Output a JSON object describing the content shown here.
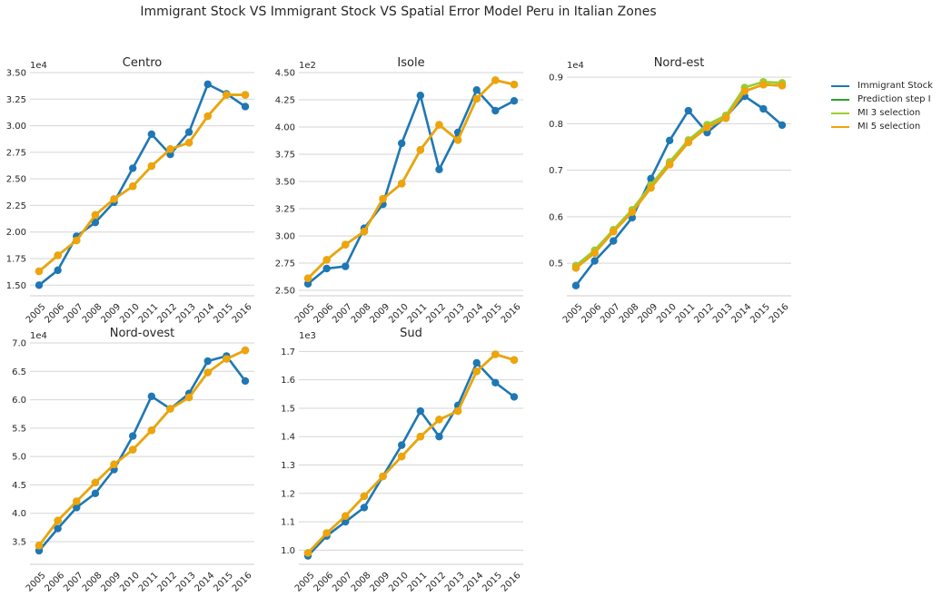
{
  "title": "Immigrant Stock VS Immigrant Stock VS Spatial Error Model Peru in Italian Zones",
  "series_names": [
    "Immigrant Stock",
    "Prediction step I",
    "MI 3 selection",
    "MI 5 selection"
  ],
  "colors": {
    "Immigrant Stock": "#1f77b4",
    "Prediction step I": "#2ca02c",
    "MI 3 selection": "#9acd32",
    "MI 5 selection": "#f0a30a",
    "grid": "#d5d5d5",
    "text": "#262626"
  },
  "chart_data": [
    {
      "type": "line",
      "title": "Centro",
      "multiplier": "1e4",
      "x": [
        "2005",
        "2006",
        "2007",
        "2008",
        "2009",
        "2010",
        "2011",
        "2012",
        "2013",
        "2014",
        "2015",
        "2016"
      ],
      "ylim": [
        1.4,
        3.5
      ],
      "yticks": [
        "1.50",
        "1.75",
        "2.00",
        "2.25",
        "2.50",
        "2.75",
        "3.00",
        "3.25",
        "3.50"
      ],
      "series": [
        {
          "name": "Immigrant Stock",
          "values": [
            1.5,
            1.64,
            1.96,
            2.09,
            2.28,
            2.6,
            2.92,
            2.73,
            2.94,
            3.39,
            3.3,
            3.18
          ]
        },
        {
          "name": "Prediction step I",
          "values": [
            1.63,
            1.78,
            1.92,
            2.16,
            2.31,
            2.43,
            2.62,
            2.78,
            2.84,
            3.09,
            3.29,
            3.29
          ]
        },
        {
          "name": "MI 3 selection",
          "values": [
            1.63,
            1.78,
            1.92,
            2.16,
            2.31,
            2.43,
            2.62,
            2.78,
            2.84,
            3.09,
            3.29,
            3.29
          ]
        },
        {
          "name": "MI 5 selection",
          "values": [
            1.63,
            1.78,
            1.92,
            2.16,
            2.31,
            2.43,
            2.62,
            2.78,
            2.84,
            3.09,
            3.29,
            3.29
          ]
        }
      ]
    },
    {
      "type": "line",
      "title": "Isole",
      "multiplier": "1e2",
      "x": [
        "2005",
        "2006",
        "2007",
        "2008",
        "2009",
        "2010",
        "2011",
        "2012",
        "2013",
        "2014",
        "2015",
        "2016"
      ],
      "ylim": [
        2.45,
        4.5
      ],
      "yticks": [
        "2.50",
        "2.75",
        "3.00",
        "3.25",
        "3.50",
        "3.75",
        "4.00",
        "4.25",
        "4.50"
      ],
      "series": [
        {
          "name": "Immigrant Stock",
          "values": [
            2.56,
            2.7,
            2.72,
            3.07,
            3.29,
            3.85,
            4.29,
            3.61,
            3.95,
            4.34,
            4.15,
            4.24
          ]
        },
        {
          "name": "Prediction step I",
          "values": [
            2.61,
            2.78,
            2.92,
            3.04,
            3.34,
            3.48,
            3.79,
            4.02,
            3.88,
            4.26,
            4.43,
            4.39
          ]
        },
        {
          "name": "MI 3 selection",
          "values": [
            2.61,
            2.78,
            2.92,
            3.04,
            3.34,
            3.48,
            3.79,
            4.02,
            3.88,
            4.26,
            4.43,
            4.39
          ]
        },
        {
          "name": "MI 5 selection",
          "values": [
            2.61,
            2.78,
            2.92,
            3.04,
            3.34,
            3.48,
            3.79,
            4.02,
            3.88,
            4.26,
            4.43,
            4.39
          ]
        }
      ]
    },
    {
      "type": "line",
      "title": "Nord-est",
      "multiplier": "1e4",
      "x": [
        "2005",
        "2006",
        "2007",
        "2008",
        "2009",
        "2010",
        "2011",
        "2012",
        "2013",
        "2014",
        "2015",
        "2016"
      ],
      "ylim": [
        0.43,
        0.91
      ],
      "yticks": [
        "0.5",
        "0.6",
        "0.7",
        "0.8",
        "0.9"
      ],
      "series": [
        {
          "name": "Immigrant Stock",
          "values": [
            0.452,
            0.505,
            0.548,
            0.598,
            0.682,
            0.764,
            0.828,
            0.781,
            0.815,
            0.859,
            0.832,
            0.797
          ]
        },
        {
          "name": "Prediction step I",
          "values": [
            0.49,
            0.522,
            0.568,
            0.61,
            0.662,
            0.712,
            0.76,
            0.792,
            0.812,
            0.87,
            0.884,
            0.882
          ]
        },
        {
          "name": "MI 3 selection",
          "values": [
            0.495,
            0.528,
            0.572,
            0.615,
            0.668,
            0.718,
            0.765,
            0.798,
            0.818,
            0.878,
            0.89,
            0.888
          ]
        },
        {
          "name": "MI 5 selection",
          "values": [
            0.49,
            0.522,
            0.568,
            0.61,
            0.662,
            0.712,
            0.76,
            0.792,
            0.812,
            0.87,
            0.884,
            0.882
          ]
        }
      ]
    },
    {
      "type": "line",
      "title": "Nord-ovest",
      "multiplier": "1e4",
      "x": [
        "2005",
        "2006",
        "2007",
        "2008",
        "2009",
        "2010",
        "2011",
        "2012",
        "2013",
        "2014",
        "2015",
        "2016"
      ],
      "ylim": [
        3.1,
        7.0
      ],
      "yticks": [
        "3.5",
        "4.0",
        "4.5",
        "5.0",
        "5.5",
        "6.0",
        "6.5",
        "7.0"
      ],
      "series": [
        {
          "name": "Immigrant Stock",
          "values": [
            3.34,
            3.73,
            4.1,
            4.35,
            4.77,
            5.36,
            6.06,
            5.84,
            6.11,
            6.68,
            6.77,
            6.33
          ]
        },
        {
          "name": "Prediction step I",
          "values": [
            3.43,
            3.87,
            4.21,
            4.54,
            4.86,
            5.12,
            5.46,
            5.84,
            6.04,
            6.48,
            6.72,
            6.87
          ]
        },
        {
          "name": "MI 3 selection",
          "values": [
            3.43,
            3.87,
            4.21,
            4.54,
            4.86,
            5.12,
            5.46,
            5.84,
            6.04,
            6.48,
            6.72,
            6.87
          ]
        },
        {
          "name": "MI 5 selection",
          "values": [
            3.43,
            3.87,
            4.21,
            4.54,
            4.86,
            5.12,
            5.46,
            5.84,
            6.04,
            6.48,
            6.72,
            6.87
          ]
        }
      ]
    },
    {
      "type": "line",
      "title": "Sud",
      "multiplier": "1e3",
      "x": [
        "2005",
        "2006",
        "2007",
        "2008",
        "2009",
        "2010",
        "2011",
        "2012",
        "2013",
        "2014",
        "2015",
        "2016"
      ],
      "ylim": [
        0.95,
        1.73
      ],
      "yticks": [
        "1.0",
        "1.1",
        "1.2",
        "1.3",
        "1.4",
        "1.5",
        "1.6",
        "1.7"
      ],
      "series": [
        {
          "name": "Immigrant Stock",
          "values": [
            0.98,
            1.05,
            1.1,
            1.15,
            1.26,
            1.37,
            1.49,
            1.4,
            1.51,
            1.66,
            1.59,
            1.54
          ]
        },
        {
          "name": "Prediction step I",
          "values": [
            0.99,
            1.06,
            1.12,
            1.19,
            1.26,
            1.33,
            1.4,
            1.46,
            1.49,
            1.63,
            1.69,
            1.67
          ]
        },
        {
          "name": "MI 3 selection",
          "values": [
            0.99,
            1.06,
            1.12,
            1.19,
            1.26,
            1.33,
            1.4,
            1.46,
            1.49,
            1.63,
            1.69,
            1.67
          ]
        },
        {
          "name": "MI 5 selection",
          "values": [
            0.99,
            1.06,
            1.12,
            1.19,
            1.26,
            1.33,
            1.4,
            1.46,
            1.49,
            1.63,
            1.69,
            1.67
          ]
        }
      ]
    }
  ]
}
